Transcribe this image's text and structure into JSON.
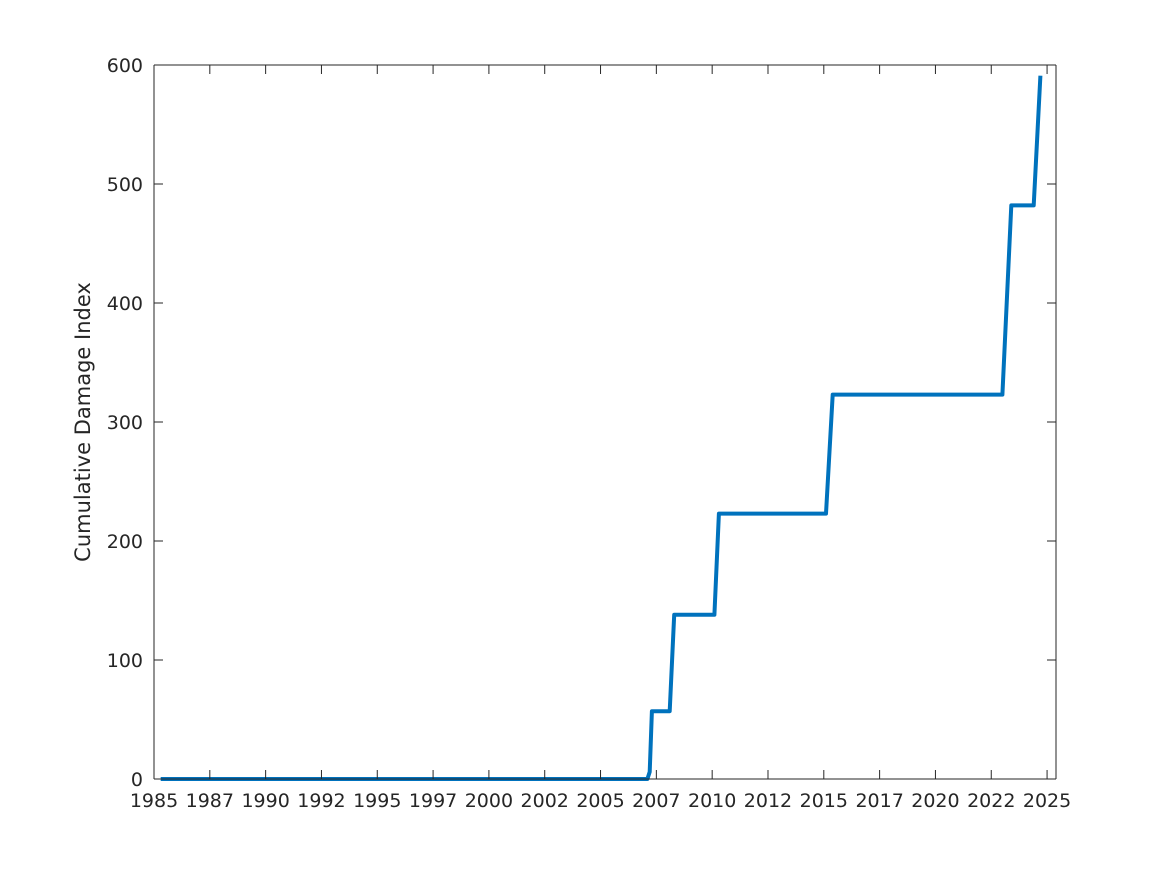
{
  "chart_data": {
    "type": "line",
    "title": "",
    "xlabel": "",
    "ylabel": "Cumulative Damage Index",
    "xlim": [
      1985.2,
      2025.6
    ],
    "ylim": [
      0,
      600
    ],
    "grid": false,
    "box": true,
    "x_ticks": [
      {
        "value": 1985.2,
        "label": "1985"
      },
      {
        "value": 1987.7,
        "label": "1987"
      },
      {
        "value": 1990.2,
        "label": "1990"
      },
      {
        "value": 1992.7,
        "label": "1992"
      },
      {
        "value": 1995.2,
        "label": "1995"
      },
      {
        "value": 1997.7,
        "label": "1997"
      },
      {
        "value": 2000.2,
        "label": "2000"
      },
      {
        "value": 2002.7,
        "label": "2002"
      },
      {
        "value": 2005.2,
        "label": "2005"
      },
      {
        "value": 2007.7,
        "label": "2007"
      },
      {
        "value": 2010.2,
        "label": "2010"
      },
      {
        "value": 2012.7,
        "label": "2012"
      },
      {
        "value": 2015.2,
        "label": "2015"
      },
      {
        "value": 2017.7,
        "label": "2017"
      },
      {
        "value": 2020.2,
        "label": "2020"
      },
      {
        "value": 2022.7,
        "label": "2022"
      },
      {
        "value": 2025.2,
        "label": "2025"
      }
    ],
    "y_ticks": [
      {
        "value": 0,
        "label": "0"
      },
      {
        "value": 100,
        "label": "100"
      },
      {
        "value": 200,
        "label": "200"
      },
      {
        "value": 300,
        "label": "300"
      },
      {
        "value": 400,
        "label": "400"
      },
      {
        "value": 500,
        "label": "500"
      },
      {
        "value": 600,
        "label": "600"
      }
    ],
    "series": [
      {
        "color": "#0072BD",
        "points": [
          [
            1985.5,
            0
          ],
          [
            2007.3,
            0
          ],
          [
            2007.4,
            6
          ],
          [
            2007.5,
            57
          ],
          [
            2008.3,
            57
          ],
          [
            2008.5,
            138
          ],
          [
            2010.3,
            138
          ],
          [
            2010.5,
            223
          ],
          [
            2015.3,
            223
          ],
          [
            2015.6,
            323
          ],
          [
            2023.2,
            323
          ],
          [
            2023.6,
            482
          ],
          [
            2024.6,
            482
          ],
          [
            2024.9,
            591
          ]
        ]
      }
    ]
  }
}
